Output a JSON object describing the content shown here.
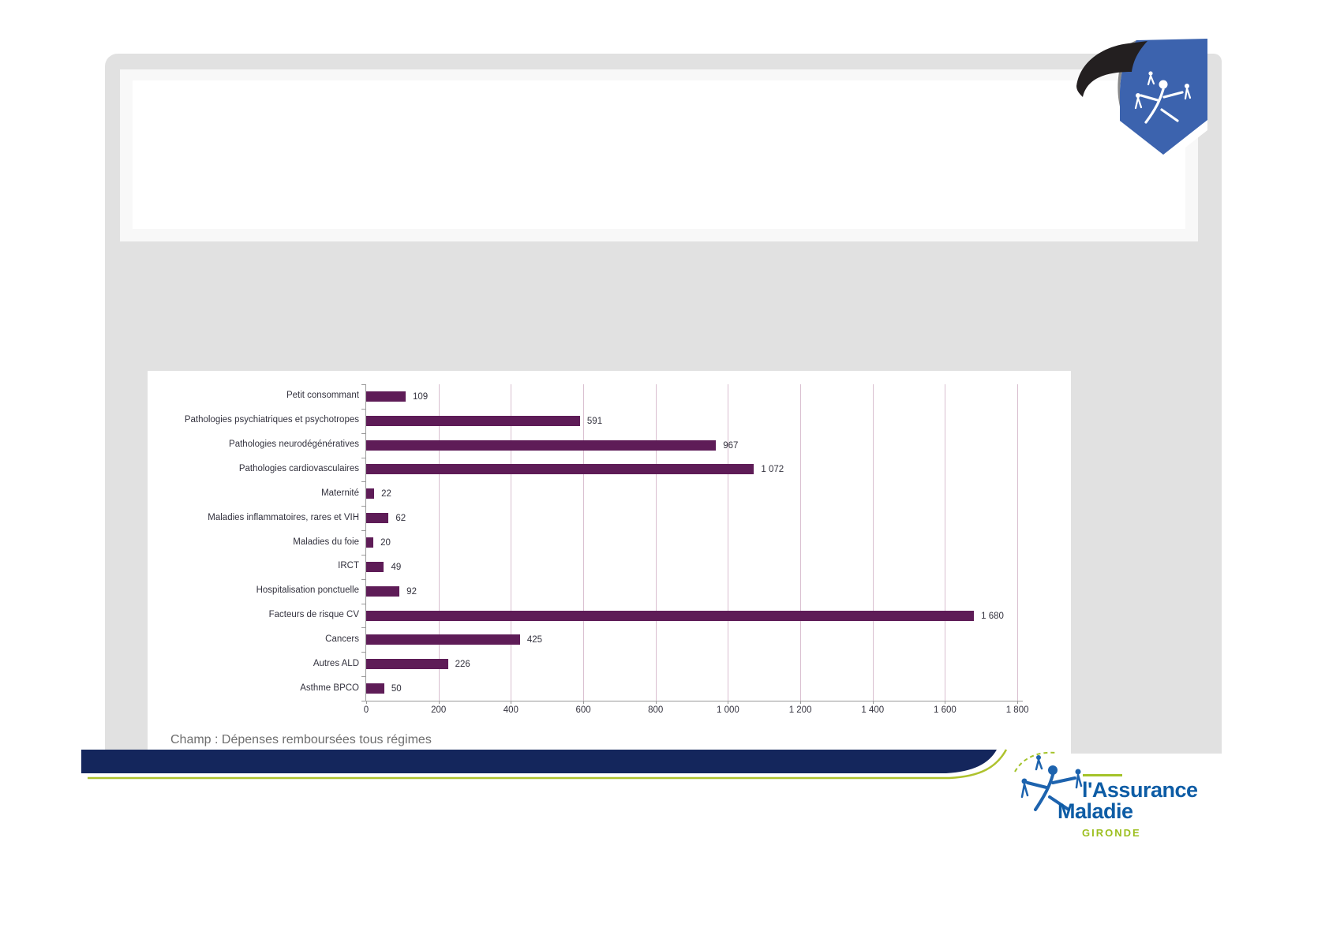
{
  "slide": {
    "title_placeholder": ""
  },
  "footnote": "Champ : Dépenses remboursées tous régimes",
  "footer_logo": {
    "line1": "l'Assurance",
    "line2": "Maladie",
    "region": "GIRONDE"
  },
  "colors": {
    "slide_bg": "#e1e1e1",
    "bar": "#5e1c57",
    "gridline": "#d9bfd0",
    "axis": "#9a9a9a",
    "navy_band": "#14265c",
    "green_line": "#aec22d",
    "am_blue": "#0d5ca5",
    "am_green": "#9cbf1f",
    "bookmark_blue": "#3c63ae",
    "bookmark_curl": "#231f20"
  },
  "chart_data": {
    "type": "bar",
    "orientation": "horizontal",
    "title": "",
    "xlabel": "",
    "ylabel": "",
    "categories": [
      "Petit consommant",
      "Pathologies psychiatriques et psychotropes",
      "Pathologies neurodégénératives",
      "Pathologies cardiovasculaires",
      "Maternité",
      "Maladies inflammatoires, rares et VIH",
      "Maladies du foie",
      "IRCT",
      "Hospitalisation ponctuelle",
      "Facteurs de risque CV",
      "Cancers",
      "Autres ALD",
      "Asthme BPCO"
    ],
    "values": [
      109,
      591,
      967,
      1072,
      22,
      62,
      20,
      49,
      92,
      1680,
      425,
      226,
      50
    ],
    "value_labels": [
      "109",
      "591",
      "967",
      "1 072",
      "22",
      "62",
      "20",
      "49",
      "92",
      "1 680",
      "425",
      "226",
      "50"
    ],
    "x_tick_values": [
      0,
      200,
      400,
      600,
      800,
      1000,
      1200,
      1400,
      1600,
      1800
    ],
    "x_ticks": [
      "0",
      "200",
      "400",
      "600",
      "800",
      "1 000",
      "1 200",
      "1 400",
      "1 600",
      "1 800"
    ],
    "xlim": [
      0,
      1815
    ],
    "grid": true,
    "legend": "none"
  }
}
